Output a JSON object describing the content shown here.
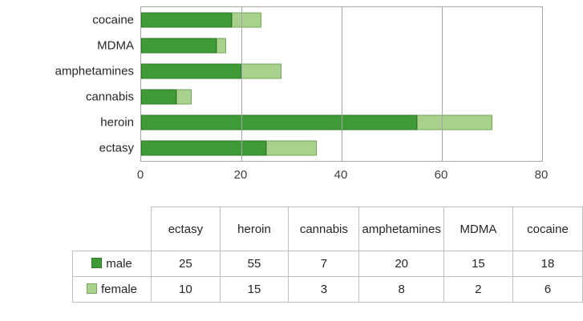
{
  "chart_data": {
    "type": "bar",
    "orientation": "horizontal",
    "stacked": true,
    "title": "",
    "xlabel": "",
    "ylabel": "",
    "grid": true,
    "xlim": [
      0,
      80
    ],
    "x_ticks": [
      0,
      20,
      40,
      60,
      80
    ],
    "categories": [
      "ectasy",
      "heroin",
      "cannabis",
      "amphetamines",
      "MDMA",
      "cocaine"
    ],
    "category_axis_order_top_to_bottom": [
      "cocaine",
      "MDMA",
      "amphetamines",
      "cannabis",
      "heroin",
      "ectasy"
    ],
    "series": [
      {
        "name": "male",
        "values": [
          25,
          55,
          7,
          20,
          15,
          18
        ],
        "color": "#3f9b35",
        "border_color": "#2c7a26"
      },
      {
        "name": "female",
        "values": [
          10,
          15,
          3,
          8,
          2,
          6
        ],
        "color": "#a9d18e",
        "border_color": "#74a85e"
      }
    ],
    "legend_position": "table-left-column",
    "colors": {
      "gridline": "#a6a6a6",
      "plot_border": "#a6a6a6",
      "table_border": "#bfbfbf",
      "tick_text": "#3f3f3f",
      "label_text": "#262626"
    }
  }
}
